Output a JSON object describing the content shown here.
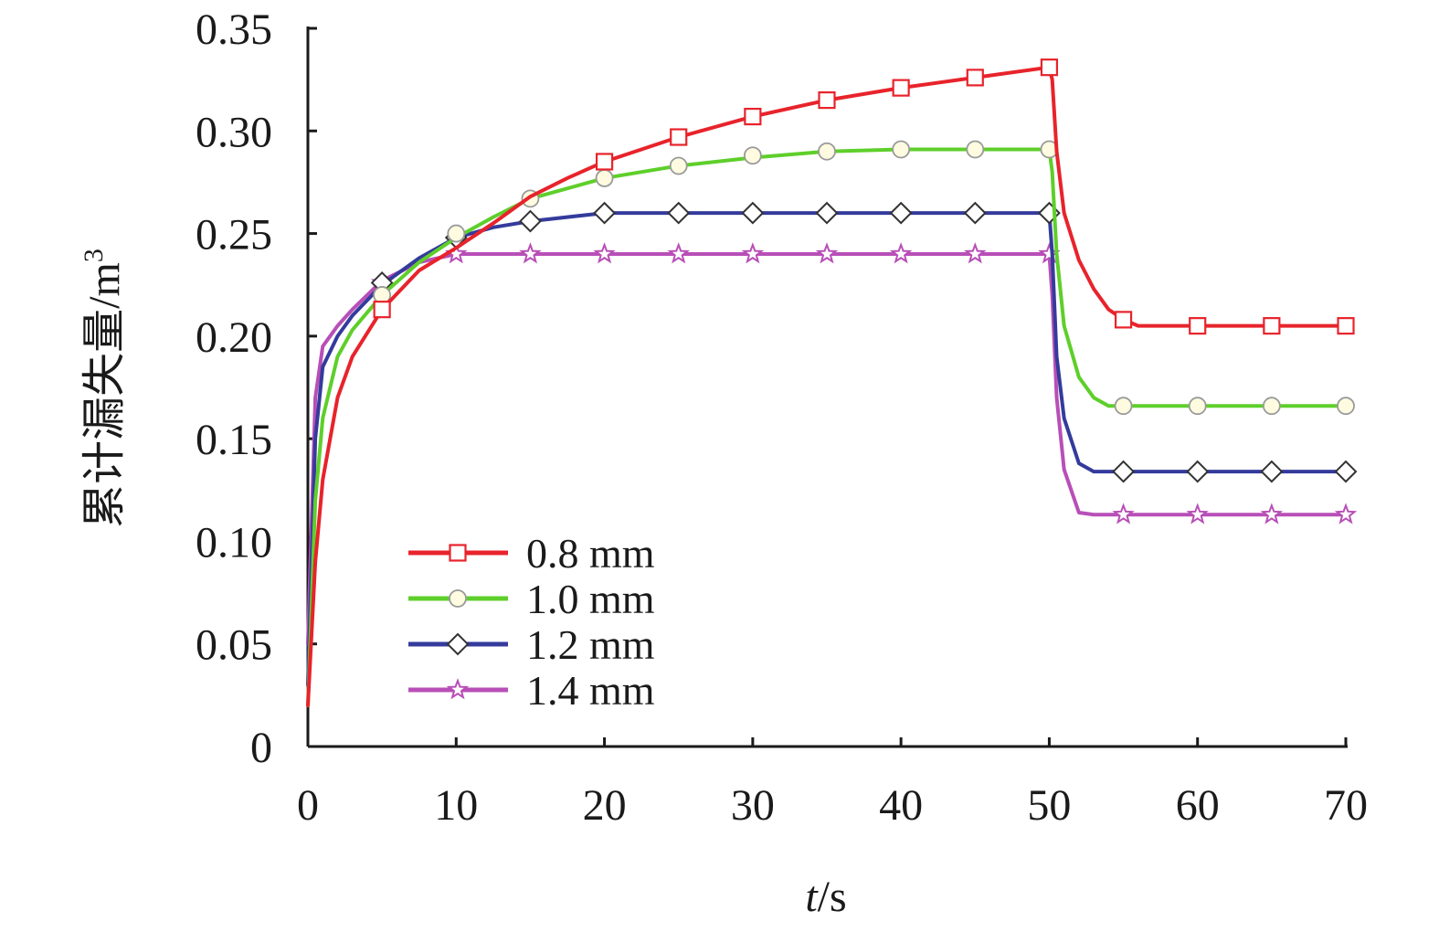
{
  "chart_data": {
    "type": "line",
    "xlabel": {
      "italic": "t",
      "rest": "/s"
    },
    "ylabel": {
      "main": "累计漏失量/m",
      "sup": "3"
    },
    "xlim": [
      0,
      70
    ],
    "ylim": [
      0,
      0.35
    ],
    "x_ticks": [
      0,
      10,
      20,
      30,
      40,
      50,
      60,
      70
    ],
    "x_tick_labels": [
      "0",
      "10",
      "20",
      "30",
      "40",
      "50",
      "60",
      "70"
    ],
    "y_ticks": [
      0,
      0.05,
      0.1,
      0.15,
      0.2,
      0.25,
      0.3,
      0.35
    ],
    "y_tick_labels": [
      "0",
      "0.05",
      "0.10",
      "0.15",
      "0.20",
      "0.25",
      "0.30",
      "0.35"
    ],
    "grid": false,
    "legend_position": "lower-left",
    "series": [
      {
        "name": "0.8 mm",
        "color": "#e8232b",
        "marker": "square",
        "line": [
          [
            0,
            0.02
          ],
          [
            0.5,
            0.09
          ],
          [
            1,
            0.13
          ],
          [
            2,
            0.17
          ],
          [
            3,
            0.19
          ],
          [
            5,
            0.213
          ],
          [
            7.5,
            0.232
          ],
          [
            10,
            0.243
          ],
          [
            12.5,
            0.255
          ],
          [
            15,
            0.268
          ],
          [
            17.5,
            0.277
          ],
          [
            20,
            0.285
          ],
          [
            25,
            0.297
          ],
          [
            30,
            0.307
          ],
          [
            35,
            0.315
          ],
          [
            40,
            0.321
          ],
          [
            45,
            0.326
          ],
          [
            50,
            0.331
          ],
          [
            50.2,
            0.325
          ],
          [
            50.5,
            0.29
          ],
          [
            51,
            0.26
          ],
          [
            52,
            0.237
          ],
          [
            53,
            0.223
          ],
          [
            54,
            0.213
          ],
          [
            55,
            0.208
          ],
          [
            56,
            0.205
          ],
          [
            60,
            0.205
          ],
          [
            65,
            0.205
          ],
          [
            70,
            0.205
          ]
        ],
        "markers": [
          [
            5,
            0.213
          ],
          [
            20,
            0.285
          ],
          [
            25,
            0.297
          ],
          [
            30,
            0.307
          ],
          [
            35,
            0.315
          ],
          [
            40,
            0.321
          ],
          [
            45,
            0.326
          ],
          [
            50,
            0.331
          ],
          [
            55,
            0.208
          ],
          [
            60,
            0.205
          ],
          [
            65,
            0.205
          ],
          [
            70,
            0.205
          ]
        ]
      },
      {
        "name": "1.0 mm",
        "color": "#5ecf2a",
        "marker": "circle",
        "line": [
          [
            0,
            0.02
          ],
          [
            0.5,
            0.12
          ],
          [
            1,
            0.16
          ],
          [
            2,
            0.19
          ],
          [
            3,
            0.203
          ],
          [
            5,
            0.22
          ],
          [
            7.5,
            0.236
          ],
          [
            10,
            0.248
          ],
          [
            12.5,
            0.258
          ],
          [
            15,
            0.267
          ],
          [
            20,
            0.277
          ],
          [
            25,
            0.283
          ],
          [
            30,
            0.287
          ],
          [
            35,
            0.29
          ],
          [
            40,
            0.291
          ],
          [
            45,
            0.291
          ],
          [
            50,
            0.291
          ],
          [
            50.2,
            0.28
          ],
          [
            50.5,
            0.24
          ],
          [
            51,
            0.205
          ],
          [
            52,
            0.18
          ],
          [
            53,
            0.17
          ],
          [
            54,
            0.166
          ],
          [
            55,
            0.166
          ],
          [
            60,
            0.166
          ],
          [
            65,
            0.166
          ],
          [
            70,
            0.166
          ]
        ],
        "markers": [
          [
            5,
            0.22
          ],
          [
            10,
            0.25
          ],
          [
            15,
            0.267
          ],
          [
            20,
            0.277
          ],
          [
            25,
            0.283
          ],
          [
            30,
            0.288
          ],
          [
            35,
            0.29
          ],
          [
            40,
            0.291
          ],
          [
            45,
            0.291
          ],
          [
            50,
            0.291
          ],
          [
            55,
            0.166
          ],
          [
            60,
            0.166
          ],
          [
            65,
            0.166
          ],
          [
            70,
            0.166
          ]
        ]
      },
      {
        "name": "1.2 mm",
        "color": "#343b9c",
        "marker": "diamond",
        "line": [
          [
            0,
            0.03
          ],
          [
            0.5,
            0.15
          ],
          [
            1,
            0.185
          ],
          [
            2,
            0.2
          ],
          [
            3,
            0.21
          ],
          [
            5,
            0.225
          ],
          [
            7.5,
            0.238
          ],
          [
            10,
            0.248
          ],
          [
            12.5,
            0.253
          ],
          [
            15,
            0.256
          ],
          [
            20,
            0.26
          ],
          [
            25,
            0.26
          ],
          [
            30,
            0.26
          ],
          [
            35,
            0.26
          ],
          [
            40,
            0.26
          ],
          [
            45,
            0.26
          ],
          [
            50,
            0.26
          ],
          [
            50.2,
            0.24
          ],
          [
            50.5,
            0.19
          ],
          [
            51,
            0.16
          ],
          [
            52,
            0.138
          ],
          [
            53,
            0.134
          ],
          [
            55,
            0.134
          ],
          [
            60,
            0.134
          ],
          [
            65,
            0.134
          ],
          [
            70,
            0.134
          ]
        ],
        "markers": [
          [
            5,
            0.226
          ],
          [
            10,
            0.248
          ],
          [
            15,
            0.256
          ],
          [
            20,
            0.26
          ],
          [
            25,
            0.26
          ],
          [
            30,
            0.26
          ],
          [
            35,
            0.26
          ],
          [
            40,
            0.26
          ],
          [
            45,
            0.26
          ],
          [
            50,
            0.26
          ],
          [
            55,
            0.134
          ],
          [
            60,
            0.134
          ],
          [
            65,
            0.134
          ],
          [
            70,
            0.134
          ]
        ]
      },
      {
        "name": "1.4 mm",
        "color": "#b84fb7",
        "marker": "star",
        "line": [
          [
            0,
            0.05
          ],
          [
            0.5,
            0.17
          ],
          [
            1,
            0.195
          ],
          [
            2,
            0.205
          ],
          [
            3,
            0.213
          ],
          [
            5,
            0.227
          ],
          [
            7.5,
            0.236
          ],
          [
            10,
            0.24
          ],
          [
            15,
            0.24
          ],
          [
            20,
            0.24
          ],
          [
            25,
            0.24
          ],
          [
            30,
            0.24
          ],
          [
            35,
            0.24
          ],
          [
            40,
            0.24
          ],
          [
            45,
            0.24
          ],
          [
            50,
            0.24
          ],
          [
            50.2,
            0.22
          ],
          [
            50.5,
            0.17
          ],
          [
            51,
            0.135
          ],
          [
            52,
            0.114
          ],
          [
            53,
            0.113
          ],
          [
            55,
            0.113
          ],
          [
            60,
            0.113
          ],
          [
            65,
            0.113
          ],
          [
            70,
            0.113
          ]
        ],
        "markers": [
          [
            5,
            0.226
          ],
          [
            10,
            0.24
          ],
          [
            15,
            0.24
          ],
          [
            20,
            0.24
          ],
          [
            25,
            0.24
          ],
          [
            30,
            0.24
          ],
          [
            35,
            0.24
          ],
          [
            40,
            0.24
          ],
          [
            45,
            0.24
          ],
          [
            50,
            0.24
          ],
          [
            55,
            0.113
          ],
          [
            60,
            0.113
          ],
          [
            65,
            0.113
          ],
          [
            70,
            0.113
          ]
        ]
      }
    ]
  }
}
